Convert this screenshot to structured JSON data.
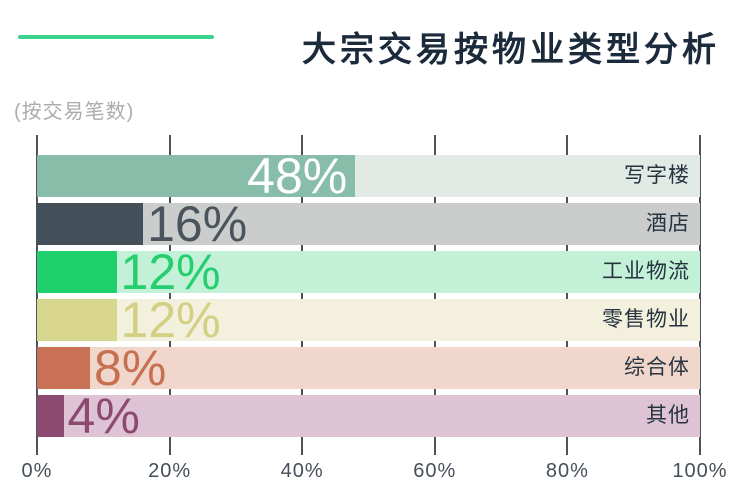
{
  "page": {
    "background": "#ffffff"
  },
  "header": {
    "title": "大宗交易按物业类型分析",
    "title_color": "#1c2b3c",
    "accent_line_color": "#3bd38c"
  },
  "subtitle": {
    "text": "(按交易笔数)",
    "color": "#acacb0"
  },
  "chart_data": {
    "type": "bar",
    "orientation": "horizontal",
    "title": "大宗交易按物业类型分析",
    "subtitle_note": "(按交易笔数)",
    "unit": "%",
    "xlim": [
      0,
      100
    ],
    "x_ticks": [
      "0%",
      "20%",
      "40%",
      "60%",
      "80%",
      "100%"
    ],
    "x_tick_values": [
      0,
      20,
      40,
      60,
      80,
      100
    ],
    "grid": true,
    "legend": false,
    "gridline_color": "#4e545b",
    "axis_tick_label_color": "#454f5a",
    "category_label_color": "#273440",
    "categories": [
      "写字楼",
      "酒店",
      "工业物流",
      "零售物业",
      "综合体",
      "其他"
    ],
    "values": [
      48,
      16,
      12,
      12,
      8,
      4
    ],
    "items": [
      {
        "category": "写字楼",
        "value": 48,
        "label": "48%",
        "bar_color": "#87bda9",
        "track_color": "#e1eae4",
        "label_color": "#ffffff",
        "label_inside": true
      },
      {
        "category": "酒店",
        "value": 16,
        "label": "16%",
        "bar_color": "#45515a",
        "track_color": "#cbcdcc",
        "label_color": "#4a545c",
        "label_inside": false
      },
      {
        "category": "工业物流",
        "value": 12,
        "label": "12%",
        "bar_color": "#1fd06c",
        "track_color": "#c3f1d7",
        "label_color": "#25ce6f",
        "label_inside": false
      },
      {
        "category": "零售物业",
        "value": 12,
        "label": "12%",
        "bar_color": "#d8d58d",
        "track_color": "#f3f1de",
        "label_color": "#d3d083",
        "label_inside": false
      },
      {
        "category": "综合体",
        "value": 8,
        "label": "8%",
        "bar_color": "#c97155",
        "track_color": "#f1d7cb",
        "label_color": "#c76f51",
        "label_inside": false
      },
      {
        "category": "其他",
        "value": 4,
        "label": "4%",
        "bar_color": "#8d4a71",
        "track_color": "#ddc3d4",
        "label_color": "#8d4a71",
        "label_inside": false
      }
    ]
  }
}
